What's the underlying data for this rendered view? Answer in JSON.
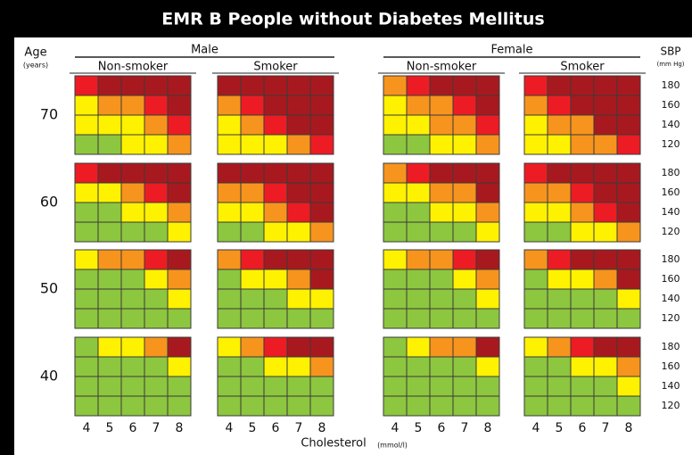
{
  "title": "EMR B People without Diabetes Mellitus",
  "age_label": "Age",
  "age_unit": "(years)",
  "sbp_label": "SBP",
  "sbp_unit": "(mm Hg)",
  "sexes": [
    {
      "name": "Male",
      "groups": [
        "Non-smoker",
        "Smoker"
      ]
    },
    {
      "name": "Female",
      "groups": [
        "Non-smoker",
        "Smoker"
      ]
    }
  ],
  "ages": [
    "70",
    "60",
    "50",
    "40"
  ],
  "sbp": [
    "180",
    "160",
    "140",
    "120"
  ],
  "cholesterol": [
    "4",
    "5",
    "6",
    "7",
    "8"
  ],
  "cholesterol_label": "Cholesterol",
  "cholesterol_unit": "(mmol/l)",
  "panels": [
    [
      [
        [
          "#ed1c24",
          "#a8191f",
          "#a8191f",
          "#a8191f",
          "#a8191f"
        ],
        [
          "#fff200",
          "#f7941d",
          "#f7941d",
          "#ed1c24",
          "#a8191f"
        ],
        [
          "#fff200",
          "#fff200",
          "#fff200",
          "#f7941d",
          "#ed1c24"
        ],
        [
          "#8dc63f",
          "#8dc63f",
          "#fff200",
          "#fff200",
          "#f7941d"
        ]
      ],
      [
        [
          "#a8191f",
          "#a8191f",
          "#a8191f",
          "#a8191f",
          "#a8191f"
        ],
        [
          "#f7941d",
          "#ed1c24",
          "#a8191f",
          "#a8191f",
          "#a8191f"
        ],
        [
          "#fff200",
          "#f7941d",
          "#ed1c24",
          "#a8191f",
          "#a8191f"
        ],
        [
          "#fff200",
          "#fff200",
          "#fff200",
          "#f7941d",
          "#ed1c24"
        ]
      ],
      [
        [
          "#f7941d",
          "#ed1c24",
          "#a8191f",
          "#a8191f",
          "#a8191f"
        ],
        [
          "#fff200",
          "#f7941d",
          "#f7941d",
          "#ed1c24",
          "#a8191f"
        ],
        [
          "#fff200",
          "#fff200",
          "#f7941d",
          "#f7941d",
          "#ed1c24"
        ],
        [
          "#8dc63f",
          "#8dc63f",
          "#fff200",
          "#fff200",
          "#f7941d"
        ]
      ],
      [
        [
          "#ed1c24",
          "#a8191f",
          "#a8191f",
          "#a8191f",
          "#a8191f"
        ],
        [
          "#f7941d",
          "#ed1c24",
          "#a8191f",
          "#a8191f",
          "#a8191f"
        ],
        [
          "#fff200",
          "#f7941d",
          "#f7941d",
          "#a8191f",
          "#a8191f"
        ],
        [
          "#fff200",
          "#fff200",
          "#f7941d",
          "#f7941d",
          "#ed1c24"
        ]
      ]
    ],
    [
      [
        [
          "#ed1c24",
          "#a8191f",
          "#a8191f",
          "#a8191f",
          "#a8191f"
        ],
        [
          "#fff200",
          "#fff200",
          "#f7941d",
          "#ed1c24",
          "#a8191f"
        ],
        [
          "#8dc63f",
          "#8dc63f",
          "#fff200",
          "#fff200",
          "#f7941d"
        ],
        [
          "#8dc63f",
          "#8dc63f",
          "#8dc63f",
          "#8dc63f",
          "#fff200"
        ]
      ],
      [
        [
          "#a8191f",
          "#a8191f",
          "#a8191f",
          "#a8191f",
          "#a8191f"
        ],
        [
          "#f7941d",
          "#f7941d",
          "#ed1c24",
          "#a8191f",
          "#a8191f"
        ],
        [
          "#fff200",
          "#fff200",
          "#f7941d",
          "#ed1c24",
          "#a8191f"
        ],
        [
          "#8dc63f",
          "#8dc63f",
          "#fff200",
          "#fff200",
          "#f7941d"
        ]
      ],
      [
        [
          "#f7941d",
          "#ed1c24",
          "#a8191f",
          "#a8191f",
          "#a8191f"
        ],
        [
          "#fff200",
          "#fff200",
          "#f7941d",
          "#f7941d",
          "#a8191f"
        ],
        [
          "#8dc63f",
          "#8dc63f",
          "#fff200",
          "#fff200",
          "#f7941d"
        ],
        [
          "#8dc63f",
          "#8dc63f",
          "#8dc63f",
          "#8dc63f",
          "#fff200"
        ]
      ],
      [
        [
          "#ed1c24",
          "#a8191f",
          "#a8191f",
          "#a8191f",
          "#a8191f"
        ],
        [
          "#f7941d",
          "#f7941d",
          "#ed1c24",
          "#a8191f",
          "#a8191f"
        ],
        [
          "#fff200",
          "#fff200",
          "#f7941d",
          "#ed1c24",
          "#a8191f"
        ],
        [
          "#8dc63f",
          "#8dc63f",
          "#fff200",
          "#fff200",
          "#f7941d"
        ]
      ]
    ],
    [
      [
        [
          "#fff200",
          "#f7941d",
          "#f7941d",
          "#ed1c24",
          "#a8191f"
        ],
        [
          "#8dc63f",
          "#8dc63f",
          "#8dc63f",
          "#fff200",
          "#f7941d"
        ],
        [
          "#8dc63f",
          "#8dc63f",
          "#8dc63f",
          "#8dc63f",
          "#fff200"
        ],
        [
          "#8dc63f",
          "#8dc63f",
          "#8dc63f",
          "#8dc63f",
          "#8dc63f"
        ]
      ],
      [
        [
          "#f7941d",
          "#ed1c24",
          "#a8191f",
          "#a8191f",
          "#a8191f"
        ],
        [
          "#8dc63f",
          "#fff200",
          "#fff200",
          "#f7941d",
          "#a8191f"
        ],
        [
          "#8dc63f",
          "#8dc63f",
          "#8dc63f",
          "#fff200",
          "#fff200"
        ],
        [
          "#8dc63f",
          "#8dc63f",
          "#8dc63f",
          "#8dc63f",
          "#8dc63f"
        ]
      ],
      [
        [
          "#fff200",
          "#f7941d",
          "#f7941d",
          "#ed1c24",
          "#a8191f"
        ],
        [
          "#8dc63f",
          "#8dc63f",
          "#8dc63f",
          "#fff200",
          "#f7941d"
        ],
        [
          "#8dc63f",
          "#8dc63f",
          "#8dc63f",
          "#8dc63f",
          "#fff200"
        ],
        [
          "#8dc63f",
          "#8dc63f",
          "#8dc63f",
          "#8dc63f",
          "#8dc63f"
        ]
      ],
      [
        [
          "#f7941d",
          "#ed1c24",
          "#a8191f",
          "#a8191f",
          "#a8191f"
        ],
        [
          "#8dc63f",
          "#fff200",
          "#fff200",
          "#f7941d",
          "#a8191f"
        ],
        [
          "#8dc63f",
          "#8dc63f",
          "#8dc63f",
          "#8dc63f",
          "#fff200"
        ],
        [
          "#8dc63f",
          "#8dc63f",
          "#8dc63f",
          "#8dc63f",
          "#8dc63f"
        ]
      ]
    ],
    [
      [
        [
          "#8dc63f",
          "#fff200",
          "#fff200",
          "#f7941d",
          "#a8191f"
        ],
        [
          "#8dc63f",
          "#8dc63f",
          "#8dc63f",
          "#8dc63f",
          "#fff200"
        ],
        [
          "#8dc63f",
          "#8dc63f",
          "#8dc63f",
          "#8dc63f",
          "#8dc63f"
        ],
        [
          "#8dc63f",
          "#8dc63f",
          "#8dc63f",
          "#8dc63f",
          "#8dc63f"
        ]
      ],
      [
        [
          "#fff200",
          "#f7941d",
          "#ed1c24",
          "#a8191f",
          "#a8191f"
        ],
        [
          "#8dc63f",
          "#8dc63f",
          "#fff200",
          "#fff200",
          "#f7941d"
        ],
        [
          "#8dc63f",
          "#8dc63f",
          "#8dc63f",
          "#8dc63f",
          "#8dc63f"
        ],
        [
          "#8dc63f",
          "#8dc63f",
          "#8dc63f",
          "#8dc63f",
          "#8dc63f"
        ]
      ],
      [
        [
          "#8dc63f",
          "#fff200",
          "#f7941d",
          "#f7941d",
          "#a8191f"
        ],
        [
          "#8dc63f",
          "#8dc63f",
          "#8dc63f",
          "#8dc63f",
          "#fff200"
        ],
        [
          "#8dc63f",
          "#8dc63f",
          "#8dc63f",
          "#8dc63f",
          "#8dc63f"
        ],
        [
          "#8dc63f",
          "#8dc63f",
          "#8dc63f",
          "#8dc63f",
          "#8dc63f"
        ]
      ],
      [
        [
          "#fff200",
          "#f7941d",
          "#ed1c24",
          "#a8191f",
          "#a8191f"
        ],
        [
          "#8dc63f",
          "#8dc63f",
          "#fff200",
          "#fff200",
          "#f7941d"
        ],
        [
          "#8dc63f",
          "#8dc63f",
          "#8dc63f",
          "#8dc63f",
          "#fff200"
        ],
        [
          "#8dc63f",
          "#8dc63f",
          "#8dc63f",
          "#8dc63f",
          "#8dc63f"
        ]
      ]
    ]
  ]
}
